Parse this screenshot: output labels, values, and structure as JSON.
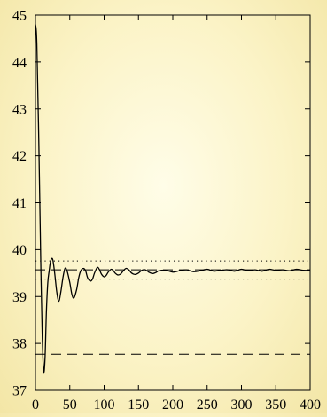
{
  "chart_data": {
    "type": "line",
    "title": "",
    "xlabel": "",
    "ylabel": "",
    "xlim": [
      0,
      400
    ],
    "ylim": [
      37,
      45
    ],
    "x_ticks": [
      0,
      50,
      100,
      150,
      200,
      250,
      300,
      350,
      400
    ],
    "y_ticks": [
      37,
      38,
      39,
      40,
      41,
      42,
      43,
      44,
      45
    ],
    "x_tick_labels": [
      "0",
      "50",
      "100",
      "150",
      "200",
      "250",
      "300",
      "350",
      "400"
    ],
    "y_tick_labels": [
      "37",
      "38",
      "39",
      "40",
      "41",
      "42",
      "43",
      "44",
      "45"
    ],
    "grid": false,
    "legend": "none",
    "reference_lines": [
      {
        "style": "dotted",
        "y": 39.76
      },
      {
        "style": "dashed",
        "y": 39.57
      },
      {
        "style": "dotted",
        "y": 39.37
      },
      {
        "style": "dashed",
        "y": 37.77
      }
    ],
    "series": [
      {
        "style": "solid",
        "x": [
          0,
          2,
          5,
          8,
          10,
          12,
          14,
          16,
          18,
          20,
          22,
          25,
          28,
          31,
          34,
          37,
          40,
          43,
          46,
          50,
          53,
          56,
          60,
          63,
          66,
          70,
          73,
          76,
          80,
          83,
          86,
          90,
          93,
          96,
          100,
          103,
          106,
          110,
          113,
          116,
          120,
          124,
          128,
          132,
          136,
          140,
          145,
          150,
          155,
          160,
          165,
          170,
          175,
          180,
          190,
          200,
          210,
          220,
          230,
          240,
          250,
          260,
          270,
          280,
          290,
          300,
          310,
          320,
          330,
          340,
          350,
          360,
          370,
          380,
          390,
          400
        ],
        "y": [
          44.8,
          44.4,
          42.2,
          39.5,
          38.1,
          37.4,
          37.7,
          38.7,
          39.3,
          39.55,
          39.75,
          39.8,
          39.5,
          39.1,
          38.9,
          39.1,
          39.4,
          39.6,
          39.55,
          39.3,
          39.05,
          38.97,
          39.15,
          39.4,
          39.55,
          39.6,
          39.55,
          39.4,
          39.33,
          39.37,
          39.5,
          39.62,
          39.58,
          39.48,
          39.42,
          39.45,
          39.52,
          39.58,
          39.56,
          39.5,
          39.46,
          39.48,
          39.55,
          39.6,
          39.57,
          39.5,
          39.47,
          39.5,
          39.56,
          39.57,
          39.52,
          39.49,
          39.51,
          39.55,
          39.56,
          39.52,
          39.55,
          39.57,
          39.53,
          39.55,
          39.58,
          39.54,
          39.56,
          39.57,
          39.54,
          39.58,
          39.55,
          39.57,
          39.54,
          39.58,
          39.56,
          39.57,
          39.55,
          39.58,
          39.56,
          39.56
        ]
      }
    ]
  }
}
